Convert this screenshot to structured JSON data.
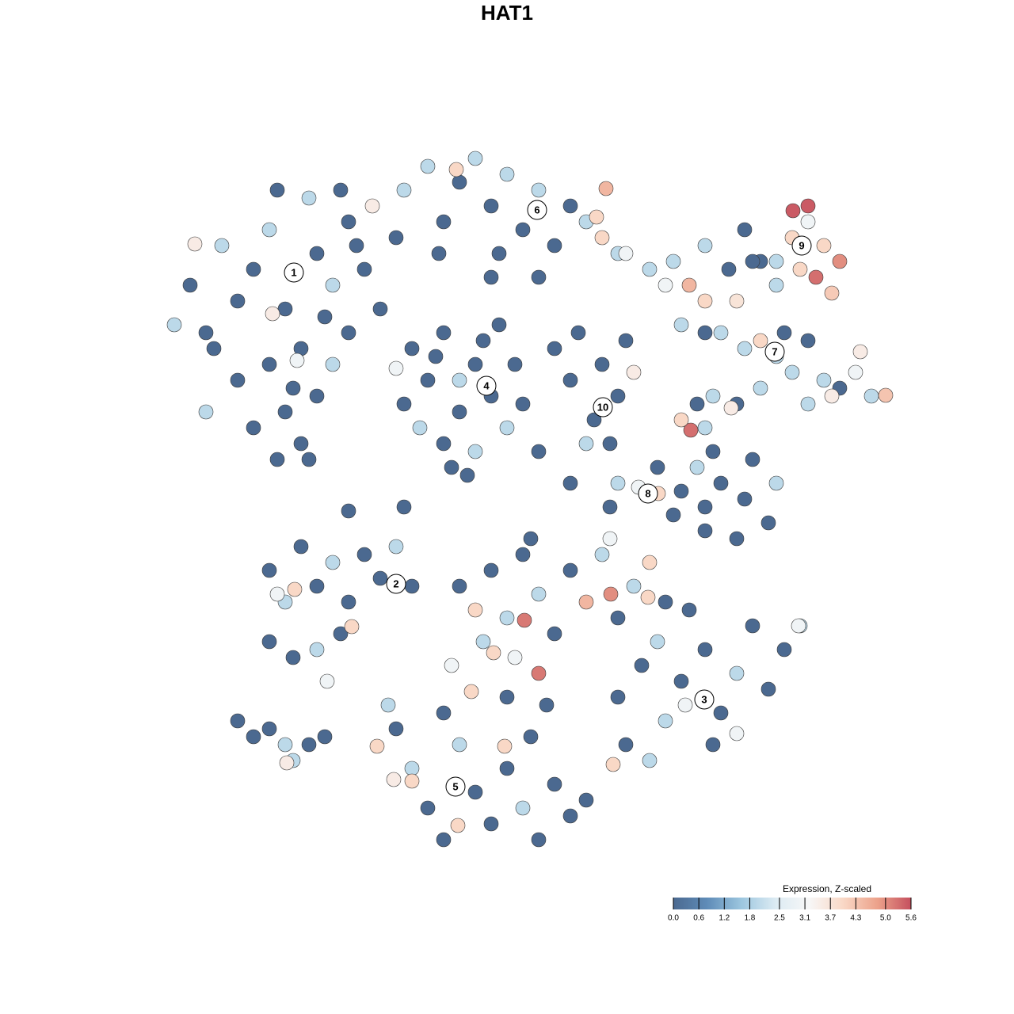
{
  "chart_data": {
    "type": "scatter",
    "title": "HAT1",
    "xlim": [
      -50,
      50
    ],
    "ylim": [
      -50,
      50
    ],
    "x": [
      -40,
      -38,
      -36,
      -34,
      -32,
      -30,
      -28,
      -26,
      -24,
      -22,
      -20,
      -18,
      -16,
      -30,
      -28,
      -26,
      -24,
      -22,
      -32,
      -34,
      -38,
      -42,
      -29,
      -25,
      -20,
      -29,
      -25,
      -21,
      -17,
      -14,
      -37,
      -27,
      -23,
      -19,
      -39.4,
      -29.6,
      -26.5,
      -13,
      -10,
      -8,
      -6,
      -4,
      -2,
      0,
      2,
      4,
      6,
      8,
      10,
      12,
      14,
      -6.4,
      -8.6,
      -1,
      12.5,
      11.3,
      15,
      18,
      20,
      4,
      -2,
      -12,
      -10,
      -8,
      -6,
      -4,
      -2,
      0,
      1,
      -11,
      -8,
      -4,
      -3,
      -1,
      -13,
      -6,
      -9,
      -14,
      2,
      -5,
      -7,
      6,
      9,
      12,
      14,
      11,
      13,
      15,
      8,
      10,
      16,
      25,
      28,
      30,
      32,
      34,
      36,
      38,
      37,
      40,
      42,
      38,
      41,
      39,
      36.1,
      31,
      34,
      21,
      23,
      25,
      22,
      27,
      29,
      25,
      30,
      32,
      34,
      36,
      38,
      40,
      42,
      44,
      46,
      47.8,
      44.6,
      41,
      38,
      35,
      32,
      26,
      29,
      24,
      28.3,
      25,
      26,
      23.2,
      24,
      22,
      19,
      22,
      25,
      27,
      30,
      33,
      29,
      25,
      21,
      31,
      34,
      19.1,
      16.6,
      14,
      13,
      -30,
      -28,
      -26,
      -24,
      -22,
      -20,
      -18,
      -16,
      -14,
      -12,
      -30,
      -27,
      -24,
      -21,
      -19.6,
      -26.8,
      -22.7,
      -29,
      -6,
      -4,
      -2,
      0,
      2,
      4,
      6,
      8,
      10,
      12,
      14,
      16,
      18,
      20,
      2.2,
      4,
      -3,
      1,
      -1.7,
      -7,
      -4.5,
      0,
      5,
      13,
      17.8,
      13.1,
      14,
      17,
      20,
      22,
      25,
      27,
      29,
      31,
      33,
      35,
      37,
      15,
      18,
      22.5,
      13.4,
      29,
      36.8,
      23,
      19,
      26,
      -14,
      -12,
      -10,
      -8,
      -6,
      -4,
      -2,
      0,
      2,
      4,
      6,
      8,
      10,
      -6.2,
      -16.4,
      -12,
      -0.3,
      -8,
      -15,
      3,
      -14.3,
      -34,
      -32,
      -30,
      -28,
      -27,
      -25,
      -23,
      -27.8,
      -13,
      -20,
      4,
      8,
      3
    ],
    "y": [
      28,
      22,
      33,
      26,
      30,
      35,
      25,
      20,
      32,
      28,
      36,
      30,
      25,
      18,
      12,
      8,
      14,
      18,
      10,
      16,
      12,
      23,
      6,
      6,
      22,
      40,
      39,
      40,
      38,
      34,
      20,
      15,
      24,
      33,
      33.2,
      24.4,
      18.5,
      40,
      43,
      36,
      41,
      44,
      38,
      42,
      35,
      40,
      33,
      38,
      36,
      34,
      32,
      42.6,
      32,
      32,
      40.2,
      36.6,
      32,
      30,
      28,
      29,
      29,
      20,
      16,
      22,
      12,
      18,
      14,
      10,
      18,
      10,
      8,
      7,
      21,
      23,
      13,
      16,
      19,
      17.5,
      13,
      4,
      5,
      20,
      22,
      18,
      14,
      11,
      8,
      21,
      16,
      8,
      17,
      33,
      30,
      35,
      31,
      28,
      34,
      36,
      30,
      33,
      31,
      38,
      27,
      29,
      37.4,
      31,
      31,
      31,
      28,
      26,
      23,
      22,
      26,
      22,
      20,
      21,
      19,
      17,
      21,
      16,
      15,
      17,
      14,
      14.1,
      19.6,
      14,
      13,
      22,
      15,
      14,
      13,
      13,
      12.5,
      10,
      7,
      9.7,
      5,
      11,
      5,
      2,
      0,
      3,
      1,
      -2,
      -4,
      -3,
      -1,
      6,
      3,
      1.7,
      2.5,
      3,
      0,
      -8,
      -12,
      -5,
      -10,
      -7,
      -12,
      -6,
      -9,
      -5,
      -10,
      -17,
      -19,
      -18,
      -16,
      -15.1,
      -10.4,
      -22,
      -11,
      -10,
      -13,
      -8,
      -14,
      -6,
      -11,
      -16,
      -8,
      -12,
      -6,
      -14,
      -10,
      -7,
      -12,
      -14.3,
      -21,
      -17,
      -19,
      -18.4,
      -20,
      -23.3,
      -24,
      -25,
      -4,
      -11.4,
      -11,
      -24,
      -20,
      -27,
      -22,
      -18,
      -26,
      -21,
      -15,
      -23,
      -18,
      -15,
      -30,
      -32,
      -25,
      -32.5,
      -28.6,
      -15,
      -13,
      -17,
      -30,
      -28,
      -33,
      -38,
      -42,
      -30,
      -36,
      -40,
      -33,
      -38,
      -42,
      -35,
      -39,
      -37,
      -40.2,
      -30.2,
      -34.6,
      -30.2,
      -26,
      -25,
      -29,
      -34.4,
      -27,
      -29,
      -28,
      -30,
      -32,
      -30,
      -29,
      -32.3,
      0,
      -0.5,
      7,
      3,
      -4
    ],
    "values": [
      0,
      0,
      2,
      0,
      0,
      2,
      0,
      0,
      0,
      2,
      0,
      0,
      0,
      0,
      0,
      0,
      0,
      2,
      0,
      0,
      2,
      2,
      0,
      0,
      0,
      0,
      2,
      0,
      3.5,
      0,
      0,
      0,
      0,
      0,
      3.5,
      3.5,
      3,
      2,
      2,
      0,
      0,
      2,
      0,
      2,
      0,
      2,
      0,
      0,
      2,
      4,
      2,
      4,
      0,
      0,
      4.5,
      4,
      3,
      2,
      3,
      0,
      0,
      0,
      0,
      0,
      0,
      0,
      0,
      2,
      0,
      2,
      0,
      2,
      0,
      0,
      0,
      2,
      0,
      3,
      0,
      0,
      0,
      0,
      0,
      0,
      0,
      0,
      0,
      0,
      0,
      2,
      3.5,
      2,
      0,
      0,
      0,
      2,
      4,
      3,
      4,
      4,
      5,
      5.5,
      4.2,
      5.3,
      5.5,
      0,
      2,
      2,
      4.5,
      4,
      2,
      2,
      3.7,
      0,
      2,
      4,
      2,
      2,
      0,
      2,
      0,
      3,
      2,
      4.3,
      3.5,
      3.5,
      2,
      0,
      2,
      2,
      0,
      0,
      3.5,
      2,
      0,
      5.3,
      2,
      4,
      0,
      0,
      0,
      0,
      0,
      0,
      0,
      0,
      0,
      0,
      2,
      4,
      3,
      2,
      0,
      0,
      2,
      0,
      0,
      2,
      0,
      0,
      0,
      2,
      0,
      0,
      0,
      2,
      0,
      4,
      4,
      3,
      3,
      0,
      4,
      0,
      2,
      0,
      2,
      0,
      0,
      4.5,
      2,
      0,
      2,
      4,
      0,
      5.2,
      5.2,
      2,
      3,
      4,
      3,
      4,
      0,
      0,
      3,
      4,
      5,
      0,
      0,
      2,
      0,
      0,
      0,
      2,
      0,
      0,
      0,
      2,
      0,
      2,
      3,
      4,
      3,
      3,
      0,
      2,
      0,
      0,
      2,
      0,
      0,
      2,
      0,
      0,
      0,
      2,
      0,
      0,
      0,
      0,
      4,
      4,
      4,
      4,
      0,
      2,
      0,
      3.5,
      0,
      0,
      0,
      2,
      2,
      0,
      0,
      3.5,
      0,
      0,
      0,
      0,
      0
    ],
    "cluster_labels": {
      "text": [
        "1",
        "2",
        "3",
        "4",
        "5",
        "6",
        "7",
        "8",
        "9",
        "10"
      ],
      "x": [
        -26.9,
        -14,
        24.9,
        -2.6,
        -6.5,
        3.8,
        33.8,
        17.8,
        37.2,
        12.1
      ],
      "y": [
        29.6,
        -9.7,
        -24.3,
        15.3,
        -35.3,
        37.5,
        19.6,
        1.7,
        33,
        12.6
      ]
    },
    "colorbar_title": "Expression, Z-scaled",
    "clim": [
      0,
      5.6
    ],
    "cticks": [
      {
        "value": 0,
        "label": "0.0"
      },
      0.6,
      1.2,
      1.8,
      2.5,
      3.1,
      3.7,
      4.3,
      {
        "value": 5,
        "label": "5.0"
      },
      5.6
    ],
    "colors": [
      "#4b6990",
      "#5f8cb8",
      "#9cc6df",
      "#dcebf3",
      "#f7f7f7",
      "#f9d8c6",
      "#eca28b",
      "#c5505e"
    ]
  }
}
